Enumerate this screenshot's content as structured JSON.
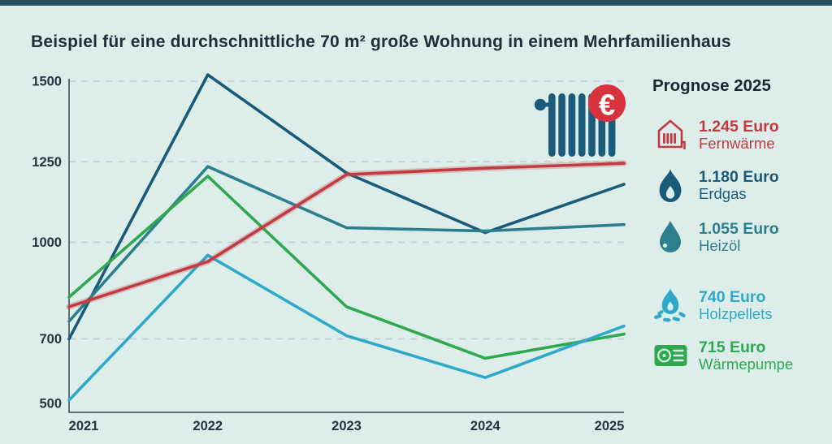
{
  "page": {
    "title": "Beispiel für eine durchschnittliche 70 m² große Wohnung in einem Mehrfamilienhaus"
  },
  "colors": {
    "background": "#dcedea",
    "top_bar": "#27505c",
    "axis": "#4d5d61",
    "gridline": "#bcd2cf",
    "tick_text": "#22363d",
    "fernwaerme_red": "#c23b41",
    "erdgas_darkblue": "#1a5b7a",
    "heizoel_teal": "#2e7f8e",
    "holzpellets_lightblue": "#2fa9c9",
    "waermepumpe_green": "#2fa850",
    "euro_badge_red": "#d8323e",
    "radiator_blue": "#1b5b7b"
  },
  "chart_data": {
    "type": "line",
    "title": "Beispiel für eine durchschnittliche 70 m² große Wohnung in einem Mehrfamilienhaus",
    "xlabel": "",
    "ylabel": "",
    "categories": [
      "2021",
      "2022",
      "2023",
      "2024",
      "2025"
    ],
    "yticks": [
      500,
      700,
      1000,
      1250,
      1500
    ],
    "ylim": [
      500,
      1550
    ],
    "grid": "horizontal dashed (at 700, 1000, 1250, 1500)",
    "legend_position": "right",
    "unit": "Euro",
    "series": [
      {
        "name": "Fernwärme",
        "color": "#c23b41",
        "values": [
          800,
          940,
          1210,
          1230,
          1245
        ]
      },
      {
        "name": "Erdgas",
        "color": "#1a5b7a",
        "values": [
          700,
          1520,
          1215,
          1030,
          1180
        ]
      },
      {
        "name": "Heizöl",
        "color": "#2e7f8e",
        "values": [
          755,
          1235,
          1045,
          1035,
          1055
        ]
      },
      {
        "name": "Holzpellets",
        "color": "#2fa9c9",
        "values": [
          510,
          960,
          710,
          580,
          740
        ]
      },
      {
        "name": "Wärmepumpe",
        "color": "#2fa850",
        "values": [
          830,
          1205,
          800,
          640,
          715
        ]
      }
    ]
  },
  "legend": {
    "heading": "Prognose 2025",
    "items": [
      {
        "icon": "district-heating-icon",
        "value_label": "1.245 Euro",
        "name": "Fernwärme",
        "color": "#c23b41",
        "spacer_before": false
      },
      {
        "icon": "gas-flame-icon",
        "value_label": "1.180 Euro",
        "name": "Erdgas",
        "color": "#1a5b7a",
        "spacer_before": false
      },
      {
        "icon": "oil-drop-icon",
        "value_label": "1.055 Euro",
        "name": "Heizöl",
        "color": "#2e7f8e",
        "spacer_before": false
      },
      {
        "icon": "wood-pellets-fire-icon",
        "value_label": "740 Euro",
        "name": "Holzpellets",
        "color": "#2fa9c9",
        "spacer_before": true
      },
      {
        "icon": "heat-pump-icon",
        "value_label": "715 Euro",
        "name": "Wärmepumpe",
        "color": "#2fa850",
        "spacer_before": false
      }
    ]
  },
  "badge": {
    "currency": "€"
  }
}
